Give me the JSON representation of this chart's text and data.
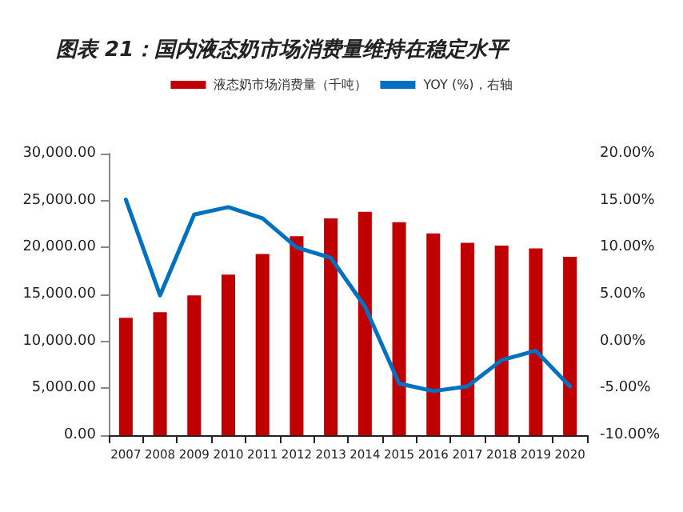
{
  "chart_data": {
    "type": "bar",
    "title": "图表 21：国内液态奶市场消费量维持在稳定水平",
    "categories": [
      "2007",
      "2008",
      "2009",
      "2010",
      "2011",
      "2012",
      "2013",
      "2014",
      "2015",
      "2016",
      "2017",
      "2018",
      "2019",
      "2020"
    ],
    "series": [
      {
        "name": "液态奶市场消费量（千吨）",
        "color": "#c00000",
        "values": [
          12500,
          13100,
          14900,
          17100,
          19300,
          21200,
          23100,
          23800,
          22700,
          21500,
          20500,
          20200,
          19900,
          19000
        ]
      },
      {
        "name": "YOY (%)，右轴",
        "type": "line",
        "axis": "y2",
        "color": "#0070c0",
        "values": [
          15.1,
          4.9,
          13.5,
          14.3,
          13.1,
          10.0,
          8.9,
          3.7,
          -4.5,
          -5.3,
          -4.8,
          -2.0,
          -1.0,
          -4.8
        ]
      }
    ],
    "ylim": [
      0,
      30000
    ],
    "yticks": [
      {
        "value": 0,
        "label": "0.00"
      },
      {
        "value": 5000,
        "label": "5,000.00"
      },
      {
        "value": 10000,
        "label": "10,000.00"
      },
      {
        "value": 15000,
        "label": "15,000.00"
      },
      {
        "value": 20000,
        "label": "20,000.00"
      },
      {
        "value": 25000,
        "label": "25,000.00"
      },
      {
        "value": 30000,
        "label": "30,000.00"
      }
    ],
    "y2lim": [
      -10,
      20
    ],
    "y2ticks": [
      {
        "value": -10,
        "label": "-10.00%"
      },
      {
        "value": -5,
        "label": "-5.00%"
      },
      {
        "value": 0,
        "label": "0.00%"
      },
      {
        "value": 5,
        "label": "5.00%"
      },
      {
        "value": 10,
        "label": "10.00%"
      },
      {
        "value": 15,
        "label": "15.00%"
      },
      {
        "value": 20,
        "label": "20.00%"
      }
    ],
    "grid": false,
    "legend": "top",
    "marker": "none",
    "line_style": "solid"
  }
}
